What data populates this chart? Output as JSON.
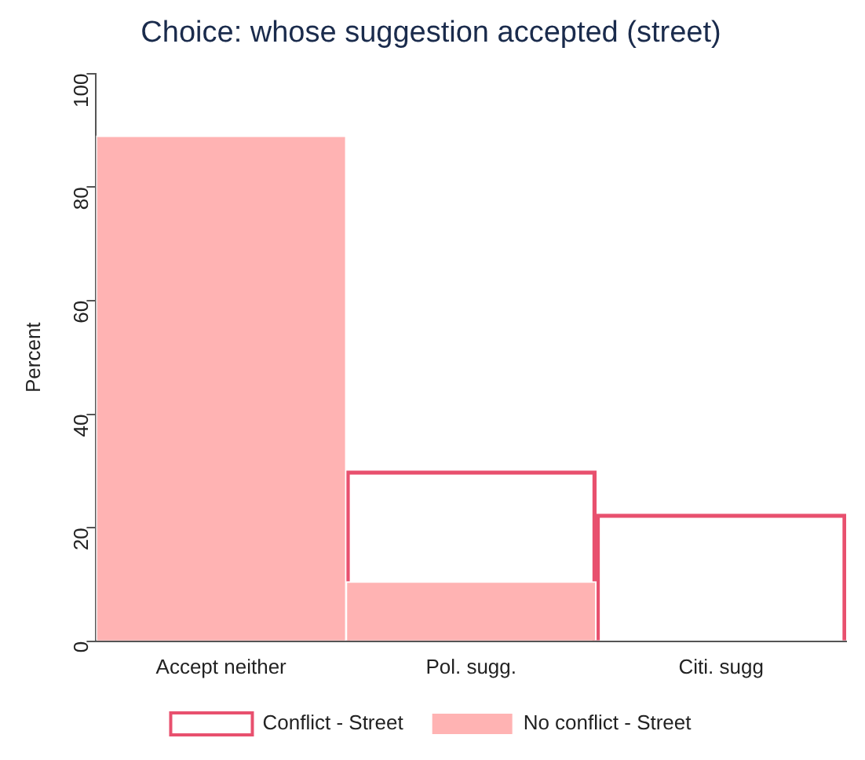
{
  "chart_data": {
    "type": "bar",
    "title": "Choice: whose suggestion accepted (street)",
    "ylabel": "Percent",
    "categories": [
      "Accept neither",
      "Pol. sugg.",
      "Citi. sugg"
    ],
    "series": [
      {
        "name": "Conflict - Street",
        "color": "#e8506e",
        "values": [
          null,
          30,
          22.4
        ]
      },
      {
        "name": "No conflict - Street",
        "color": "#ffb3b3",
        "values": [
          89,
          10.5,
          0
        ]
      }
    ],
    "ylim": [
      0,
      100
    ],
    "yticks": [
      0,
      20,
      40,
      60,
      80,
      100
    ],
    "grid": false,
    "legend": "bottom"
  }
}
